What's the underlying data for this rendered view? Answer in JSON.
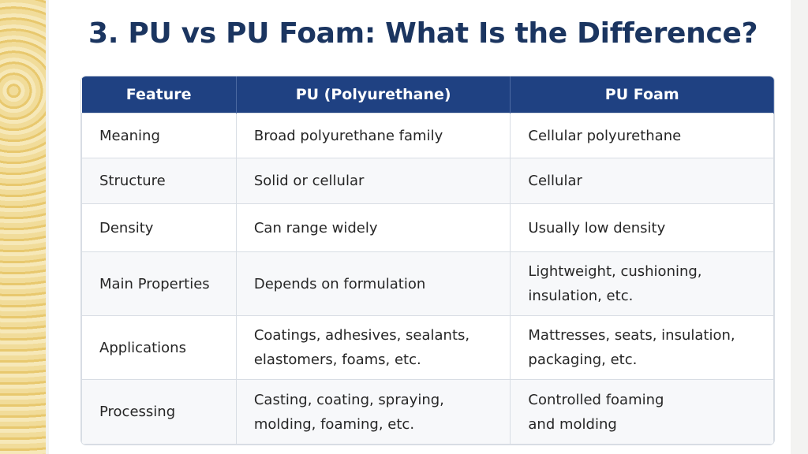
{
  "title": "3. PU vs PU Foam: What Is the Difference?",
  "table": {
    "header": [
      "Feature",
      "PU (Polyurethane)",
      "PU Foam"
    ],
    "rows": [
      [
        "Meaning",
        "Broad polyurethane family",
        "Cellular polyurethane"
      ],
      [
        "Structure",
        "Solid or cellular",
        "Cellular"
      ],
      [
        "Density",
        "Can range widely",
        "Usually low density"
      ],
      [
        "Main Properties",
        "Depends on formulation",
        "Lightweight, cushioning,\ninsulation, etc."
      ],
      [
        "Applications",
        "Coatings, adhesives, sealants,\nelastomers, foams, etc.",
        "Mattresses, seats, insulation,\npackaging, etc."
      ],
      [
        "Processing",
        "Casting, coating, spraying,\nmolding, foaming, etc.",
        "Controlled foaming\nand molding"
      ]
    ]
  }
}
